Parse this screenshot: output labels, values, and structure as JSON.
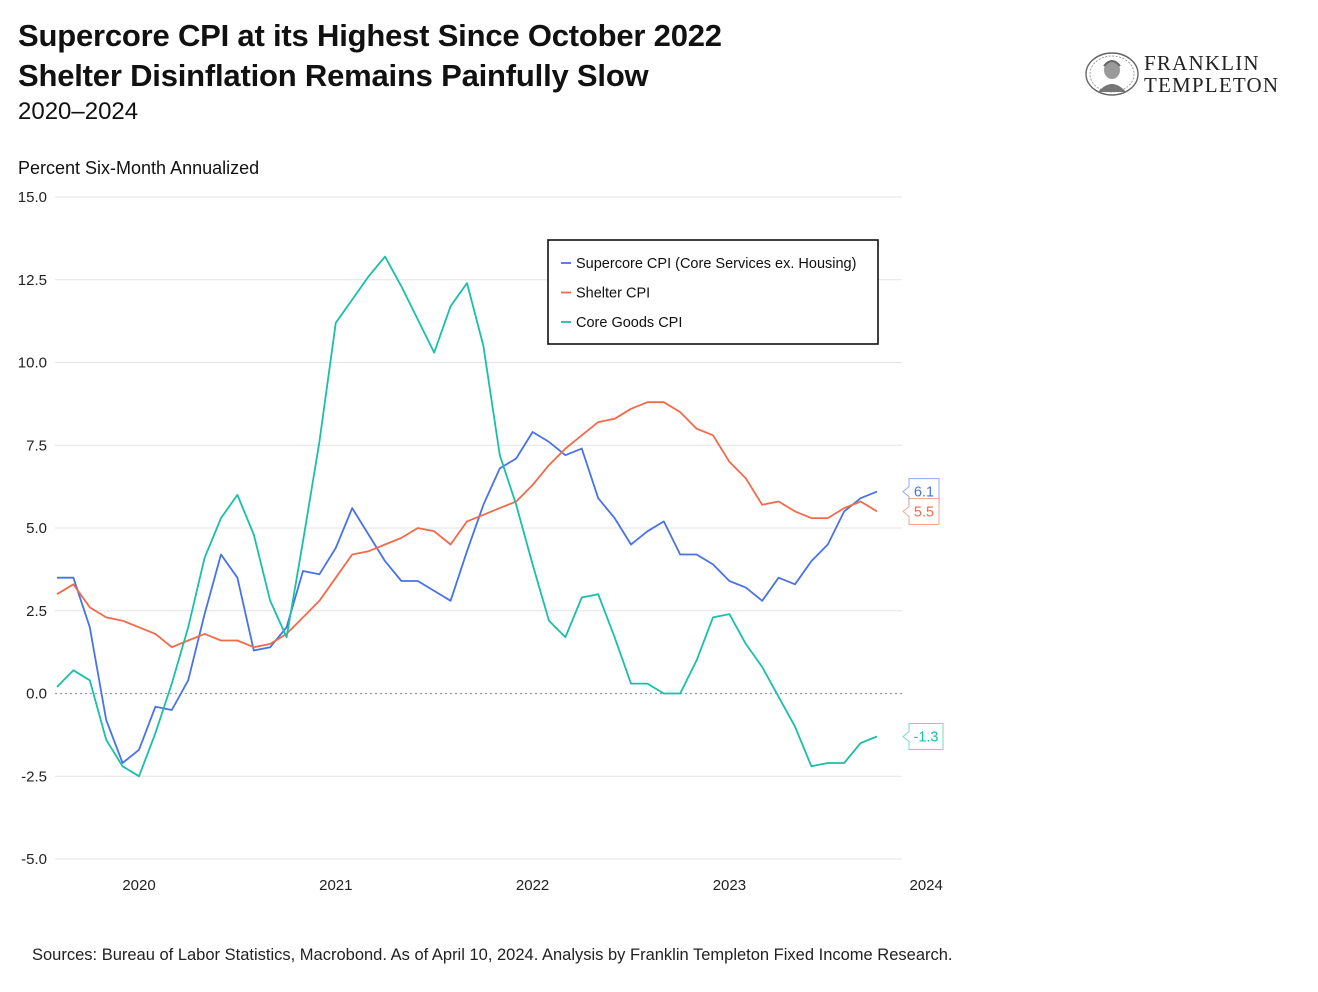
{
  "header": {
    "title_line1": "Supercore CPI at its Highest Since October 2022",
    "title_line2": "Shelter Disinflation Remains Painfully Slow",
    "subtitle": "2020–2024"
  },
  "logo": {
    "line1": "FRANKLIN",
    "line2": "TEMPLETON"
  },
  "footer": {
    "source": "Sources: Bureau of Labor Statistics, Macrobond. As of April 10, 2024. Analysis by Franklin Templeton Fixed Income Research."
  },
  "chart_data": {
    "type": "line",
    "ylabel": "Percent Six-Month Annualized",
    "ylim": [
      -5.0,
      15.0
    ],
    "yticks": [
      "15.0",
      "12.5",
      "10.0",
      "7.5",
      "5.0",
      "2.5",
      "0.0",
      "-2.5",
      "-5.0"
    ],
    "xlim": [
      "2019-07",
      "2024-03"
    ],
    "xtick_labels": [
      {
        "label": "2020",
        "date": "2020-01"
      },
      {
        "label": "2021",
        "date": "2021-01"
      },
      {
        "label": "2022",
        "date": "2022-01"
      },
      {
        "label": "2023",
        "date": "2023-01"
      },
      {
        "label": "2024",
        "date": "2024-01"
      }
    ],
    "x_start": "2019-08",
    "x_step": "1 month",
    "zero_line": "dotted",
    "grid": "horizontal",
    "legend_position": "top-right",
    "series": [
      {
        "name": "Supercore CPI (Core Services ex. Housing)",
        "color": "#4a72e8",
        "end_label": "6.1",
        "values": [
          3.5,
          3.5,
          2.0,
          -0.8,
          -2.1,
          -1.7,
          -0.4,
          -0.5,
          0.4,
          2.4,
          4.2,
          3.5,
          1.3,
          1.4,
          2.0,
          3.7,
          3.6,
          4.4,
          5.6,
          4.8,
          4.0,
          3.4,
          3.4,
          3.1,
          2.8,
          4.3,
          5.7,
          6.8,
          7.1,
          7.9,
          7.6,
          7.2,
          7.4,
          5.9,
          5.3,
          4.5,
          4.9,
          5.2,
          4.2,
          4.2,
          3.9,
          3.4,
          3.2,
          2.8,
          3.5,
          3.3,
          4.0,
          4.5,
          5.5,
          5.9,
          6.1
        ]
      },
      {
        "name": "Shelter CPI",
        "color": "#f26a4b",
        "end_label": "5.5",
        "values": [
          3.0,
          3.3,
          2.6,
          2.3,
          2.2,
          2.0,
          1.8,
          1.4,
          1.6,
          1.8,
          1.6,
          1.6,
          1.4,
          1.5,
          1.8,
          2.3,
          2.8,
          3.5,
          4.2,
          4.3,
          4.5,
          4.7,
          5.0,
          4.9,
          4.5,
          5.2,
          5.4,
          5.6,
          5.8,
          6.3,
          6.9,
          7.4,
          7.8,
          8.2,
          8.3,
          8.6,
          8.8,
          8.8,
          8.5,
          8.0,
          7.8,
          7.0,
          6.5,
          5.7,
          5.8,
          5.5,
          5.3,
          5.3,
          5.6,
          5.8,
          5.5
        ]
      },
      {
        "name": "Core Goods CPI",
        "color": "#1bbfa8",
        "end_label": "-1.3",
        "values": [
          0.2,
          0.7,
          0.4,
          -1.4,
          -2.2,
          -2.5,
          -1.2,
          0.3,
          2.0,
          4.1,
          5.3,
          6.0,
          4.8,
          2.8,
          1.7,
          4.6,
          7.6,
          11.2,
          11.9,
          12.6,
          13.2,
          12.3,
          11.3,
          10.3,
          11.7,
          12.4,
          10.5,
          7.2,
          5.7,
          3.9,
          2.2,
          1.7,
          2.9,
          3.0,
          1.7,
          0.3,
          0.3,
          0.0,
          0.0,
          1.0,
          2.3,
          2.4,
          1.5,
          0.8,
          -0.1,
          -1.0,
          -2.2,
          -2.1,
          -2.1,
          -1.5,
          -1.3
        ]
      }
    ]
  }
}
